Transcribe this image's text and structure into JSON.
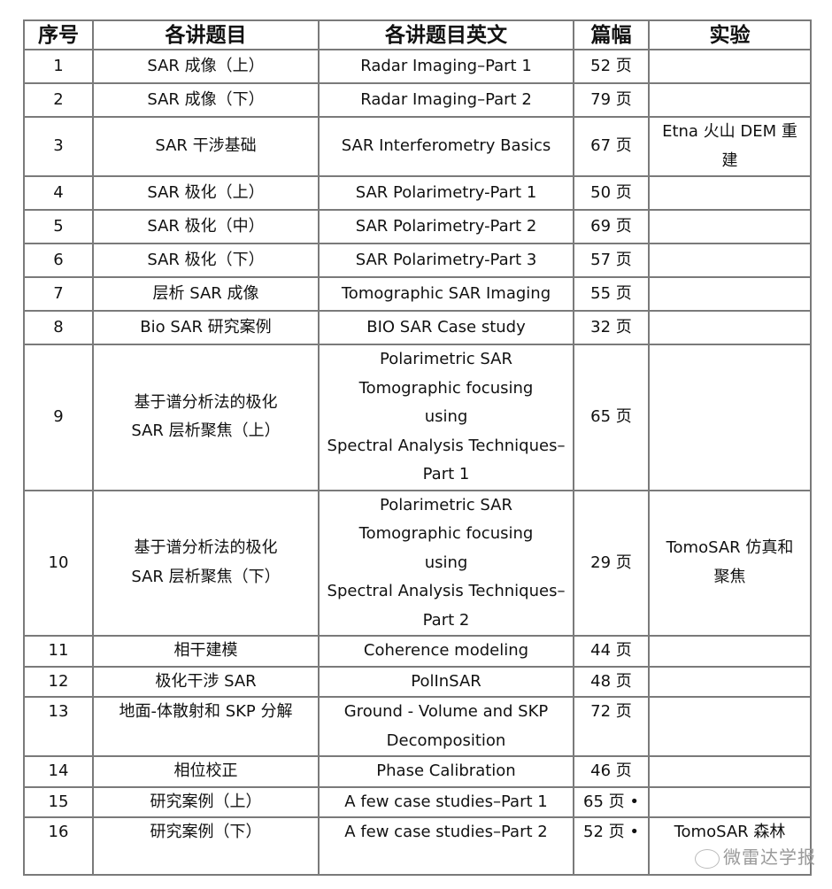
{
  "headers": [
    "序号",
    "各讲题目",
    "各讲题目英文",
    "篇幅",
    "实验"
  ],
  "rows": [
    {
      "no": "1",
      "cn": [
        "SAR 成像（上）"
      ],
      "en": [
        "Radar Imaging–Part 1"
      ],
      "pages": "52 页",
      "lab": []
    },
    {
      "no": "2",
      "cn": [
        "SAR 成像（下）"
      ],
      "en": [
        "Radar Imaging–Part 2"
      ],
      "pages": "79 页",
      "lab": []
    },
    {
      "no": "3",
      "cn": [
        "SAR 干涉基础"
      ],
      "en": [
        "SAR Interferometry Basics"
      ],
      "pages": "67 页",
      "lab": [
        "Etna 火山 DEM 重",
        "建"
      ]
    },
    {
      "no": "4",
      "cn": [
        "SAR 极化（上）"
      ],
      "en": [
        "SAR Polarimetry-Part 1"
      ],
      "pages": "50 页",
      "lab": []
    },
    {
      "no": "5",
      "cn": [
        "SAR 极化（中）"
      ],
      "en": [
        "SAR Polarimetry-Part 2"
      ],
      "pages": "69 页",
      "lab": []
    },
    {
      "no": "6",
      "cn": [
        "SAR 极化（下）"
      ],
      "en": [
        "SAR Polarimetry-Part 3"
      ],
      "pages": "57 页",
      "lab": []
    },
    {
      "no": "7",
      "cn": [
        "层析 SAR 成像"
      ],
      "en": [
        "Tomographic SAR Imaging"
      ],
      "pages": "55 页",
      "lab": []
    },
    {
      "no": "8",
      "cn": [
        "Bio SAR  研究案例"
      ],
      "en": [
        "BIO SAR Case study"
      ],
      "pages": "32 页",
      "lab": []
    },
    {
      "no": "9",
      "cn": [
        "基于谱分析法的极化",
        "SAR 层析聚焦（上）"
      ],
      "en": [
        "Polarimetric SAR",
        "Tomographic focusing",
        "using",
        "Spectral Analysis Techniques–",
        "Part 1"
      ],
      "pages": "65 页",
      "lab": []
    },
    {
      "no": "10",
      "cn": [
        "基于谱分析法的极化",
        "SAR 层析聚焦（下）"
      ],
      "en": [
        "Polarimetric SAR",
        "Tomographic focusing",
        "using",
        "Spectral Analysis Techniques–",
        "Part 2"
      ],
      "pages": "29 页",
      "lab": [
        "TomoSAR 仿真和",
        "聚焦"
      ]
    },
    {
      "no": "11",
      "cn": [
        "相干建模"
      ],
      "en": [
        "Coherence modeling"
      ],
      "pages": "44 页",
      "lab": []
    },
    {
      "no": "12",
      "cn": [
        "极化干涉 SAR"
      ],
      "en": [
        "PolInSAR"
      ],
      "pages": "48 页",
      "lab": []
    },
    {
      "no": "13",
      "cn": [
        "地面-体散射和 SKP 分解"
      ],
      "en": [
        "Ground - Volume and SKP",
        "Decomposition"
      ],
      "pages": "72 页",
      "lab": []
    },
    {
      "no": "14",
      "cn": [
        "相位校正"
      ],
      "en": [
        "Phase Calibration"
      ],
      "pages": "46 页",
      "lab": []
    },
    {
      "no": "15",
      "cn": [
        "研究案例（上）"
      ],
      "en": [
        "A few case studies–Part 1"
      ],
      "pages": "65 页 •",
      "lab": []
    },
    {
      "no": "16",
      "cn": [
        "研究案例（下）"
      ],
      "en": [
        "A few case studies–Part 2"
      ],
      "pages": "52 页 •",
      "lab": [
        "TomoSAR  森林"
      ]
    }
  ],
  "watermark": "微雷达学报"
}
